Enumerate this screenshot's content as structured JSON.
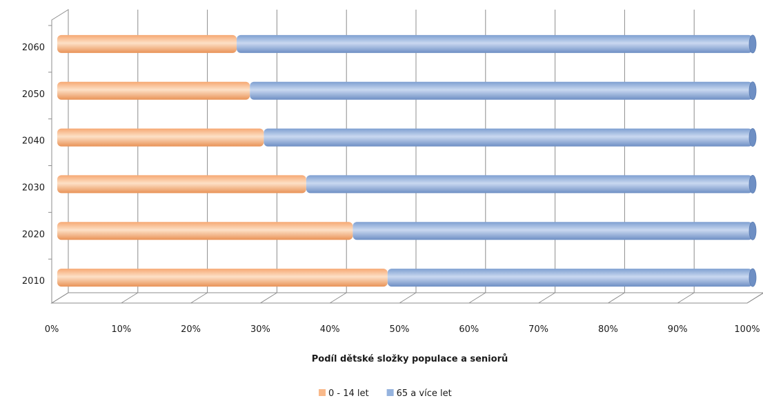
{
  "chart_data": {
    "type": "bar",
    "orientation": "horizontal",
    "stacking": "percent",
    "categories": [
      "2010",
      "2020",
      "2030",
      "2040",
      "2050",
      "2060"
    ],
    "series": [
      {
        "name": "0 - 14 let",
        "color": "#F9B98A",
        "values": [
          47.5,
          42.5,
          35.8,
          29.7,
          27.7,
          25.8
        ]
      },
      {
        "name": "65 a více let",
        "color": "#95B3DE",
        "values": [
          52.5,
          57.5,
          64.2,
          70.3,
          72.3,
          74.2
        ]
      }
    ],
    "xlabel": "Podíl dětské složky populace a seniorů",
    "ylabel": "",
    "xlim": [
      0,
      100
    ],
    "xticks": [
      "0%",
      "10%",
      "20%",
      "30%",
      "40%",
      "50%",
      "60%",
      "70%",
      "80%",
      "90%",
      "100%"
    ],
    "grid": true,
    "legend_position": "bottom"
  }
}
